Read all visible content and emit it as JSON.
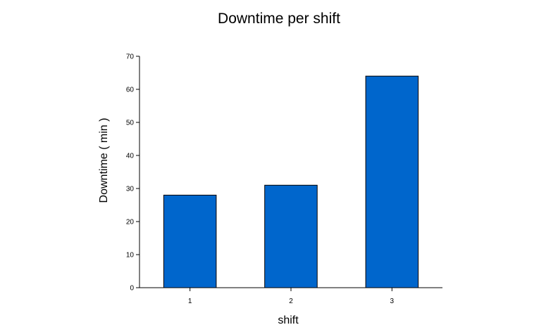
{
  "chart_data": {
    "type": "bar",
    "title": "Downtime per shift",
    "xlabel": "shift",
    "ylabel": "Downtime ( min )",
    "categories": [
      "1",
      "2",
      "3"
    ],
    "values": [
      28,
      31,
      64
    ],
    "ylim": [
      0,
      70
    ],
    "yticks": [
      0,
      10,
      20,
      30,
      40,
      50,
      60,
      70
    ],
    "bar_color": "#0066cc",
    "bar_edge_color": "#000000",
    "grid": false,
    "legend": "none"
  }
}
